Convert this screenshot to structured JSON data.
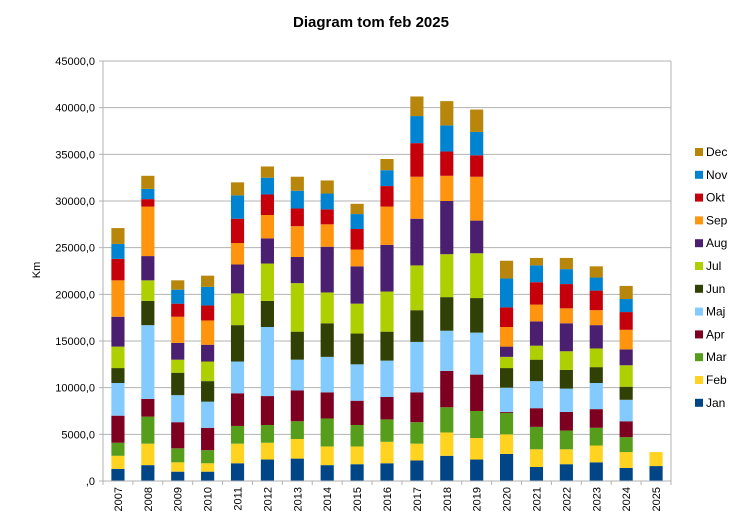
{
  "chart_data": {
    "type": "bar",
    "stacked": true,
    "title": "Diagram tom feb 2025",
    "ylabel": "Km",
    "xlabel": "",
    "ylim": [
      0,
      45000
    ],
    "yticks": [
      0,
      5000,
      10000,
      15000,
      20000,
      25000,
      30000,
      35000,
      40000,
      45000
    ],
    "ytick_labels": [
      ",0",
      "5000,0",
      "10000,0",
      "15000,0",
      "20000,0",
      "25000,0",
      "30000,0",
      "35000,0",
      "40000,0",
      "45000,0"
    ],
    "grid": true,
    "legend_position": "right",
    "categories": [
      "2007",
      "2008",
      "2009",
      "2010",
      "2011",
      "2012",
      "2013",
      "2014",
      "2015",
      "2016",
      "2017",
      "2018",
      "2019",
      "2020",
      "2021",
      "2022",
      "2023",
      "2024",
      "2025"
    ],
    "series": [
      {
        "name": "Jan",
        "color": "#004586",
        "values": [
          1300,
          1700,
          1000,
          1000,
          1900,
          2300,
          2400,
          1700,
          1800,
          1900,
          2200,
          2700,
          2300,
          2900,
          1500,
          1800,
          2000,
          1400,
          1600
        ]
      },
      {
        "name": "Feb",
        "color": "#ffd320",
        "values": [
          1400,
          2300,
          1000,
          900,
          2100,
          1800,
          2100,
          2000,
          1900,
          2300,
          1800,
          2500,
          2300,
          2100,
          1900,
          1600,
          1800,
          1700,
          1500
        ]
      },
      {
        "name": "Mar",
        "color": "#579d1c",
        "values": [
          1400,
          2900,
          1500,
          1400,
          1900,
          1900,
          1900,
          3000,
          2300,
          2400,
          2300,
          2700,
          2900,
          2300,
          2400,
          2000,
          1900,
          1600,
          0
        ]
      },
      {
        "name": "Apr",
        "color": "#7e0021",
        "values": [
          2900,
          1900,
          2800,
          2400,
          3500,
          3100,
          3300,
          2800,
          2600,
          2400,
          3200,
          3900,
          3900,
          100,
          2000,
          2000,
          2000,
          1700,
          0
        ]
      },
      {
        "name": "Maj",
        "color": "#83caff",
        "values": [
          3500,
          7900,
          2900,
          2800,
          3400,
          7400,
          3300,
          3800,
          3900,
          3900,
          5400,
          4300,
          4500,
          2600,
          2900,
          2500,
          2800,
          2300,
          0
        ]
      },
      {
        "name": "Jun",
        "color": "#314004",
        "values": [
          1600,
          2600,
          2400,
          2200,
          3900,
          2800,
          3000,
          3600,
          3300,
          3100,
          3400,
          3600,
          3700,
          2100,
          2300,
          2000,
          1700,
          1400,
          0
        ]
      },
      {
        "name": "Jul",
        "color": "#aecf00",
        "values": [
          2300,
          2200,
          1400,
          2100,
          3400,
          4000,
          5200,
          3300,
          3200,
          4300,
          4800,
          4600,
          4800,
          1200,
          1500,
          2000,
          2000,
          2300,
          0
        ]
      },
      {
        "name": "Aug",
        "color": "#4b1f6f",
        "values": [
          3200,
          2600,
          1800,
          1800,
          3100,
          2700,
          2800,
          4900,
          4000,
          5000,
          5000,
          5700,
          3500,
          1100,
          2600,
          3000,
          2500,
          1700,
          0
        ]
      },
      {
        "name": "Sep",
        "color": "#ff950e",
        "values": [
          3900,
          5300,
          2800,
          2600,
          2300,
          2500,
          3300,
          2400,
          1800,
          4100,
          4500,
          2700,
          4700,
          2100,
          1800,
          1600,
          1600,
          2100,
          0
        ]
      },
      {
        "name": "Okt",
        "color": "#c5000b",
        "values": [
          2300,
          800,
          1400,
          1600,
          2600,
          2200,
          1900,
          1600,
          2200,
          2200,
          3600,
          2600,
          2300,
          2100,
          2400,
          2600,
          2100,
          1900,
          0
        ]
      },
      {
        "name": "Nov",
        "color": "#0084d1",
        "values": [
          1600,
          1100,
          1500,
          2000,
          2500,
          1800,
          1900,
          1700,
          1600,
          1700,
          2900,
          2800,
          2500,
          3100,
          1800,
          1600,
          1400,
          1400,
          0
        ]
      },
      {
        "name": "Dec",
        "color": "#b8860b",
        "values": [
          1700,
          1400,
          1000,
          1200,
          1400,
          1200,
          1500,
          1400,
          1100,
          1200,
          2100,
          2600,
          2400,
          1900,
          800,
          1200,
          1200,
          1400,
          0
        ]
      }
    ]
  }
}
